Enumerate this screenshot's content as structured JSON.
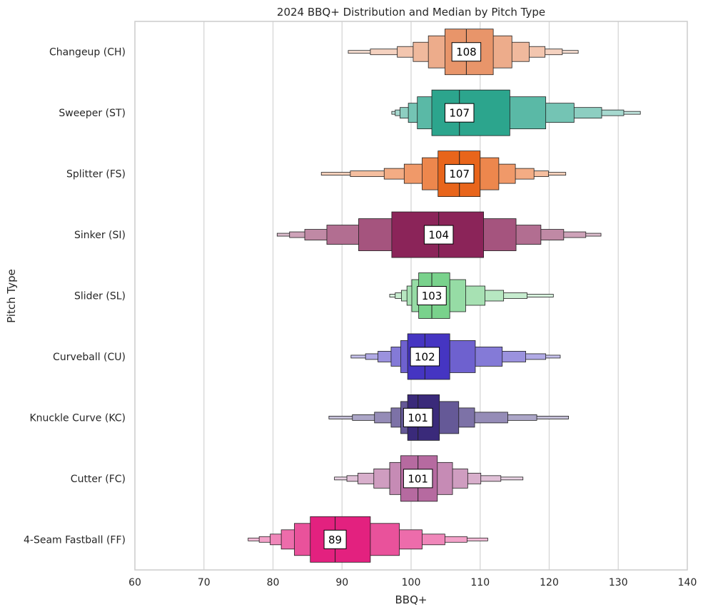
{
  "chart_data": {
    "type": "boxenplot",
    "title": "2024 BBQ+ Distribution and Median by Pitch Type",
    "xlabel": "BBQ+",
    "ylabel": "Pitch Type",
    "xlim": [
      60,
      140
    ],
    "xticks": [
      60,
      70,
      80,
      90,
      100,
      110,
      120,
      130,
      140
    ],
    "grid": "vertical",
    "categories": [
      "Changeup (CH)",
      "Sweeper (ST)",
      "Splitter (FS)",
      "Sinker (SI)",
      "Slider (SL)",
      "Curveball (CU)",
      "Knuckle Curve (KC)",
      "Cutter (FC)",
      "4-Seam Fastball (FF)"
    ],
    "series": [
      {
        "category": "Changeup (CH)",
        "color": "#e8956a",
        "median": 108,
        "median_label": "108",
        "boxes": [
          [
            104.9,
            111.9
          ],
          [
            102.5,
            114.6
          ],
          [
            100.3,
            117.1
          ],
          [
            98.0,
            119.4
          ],
          [
            94.1,
            121.9
          ],
          [
            90.9,
            124.2
          ]
        ]
      },
      {
        "category": "Sweeper (ST)",
        "color": "#2ca58d",
        "median": 107,
        "median_label": "107",
        "boxes": [
          [
            103.0,
            114.3
          ],
          [
            100.9,
            119.5
          ],
          [
            99.6,
            123.6
          ],
          [
            98.4,
            127.6
          ],
          [
            97.7,
            130.8
          ],
          [
            97.2,
            133.2
          ]
        ]
      },
      {
        "category": "Splitter (FS)",
        "color": "#e8651b",
        "median": 107,
        "median_label": "107",
        "boxes": [
          [
            103.9,
            110.0
          ],
          [
            101.6,
            112.7
          ],
          [
            99.0,
            115.1
          ],
          [
            96.1,
            117.8
          ],
          [
            91.2,
            119.9
          ],
          [
            87.0,
            122.4
          ]
        ]
      },
      {
        "category": "Sinker (SI)",
        "color": "#8b2459",
        "median": 104,
        "median_label": "104",
        "boxes": [
          [
            97.2,
            110.5
          ],
          [
            92.4,
            115.2
          ],
          [
            87.8,
            118.8
          ],
          [
            84.6,
            122.1
          ],
          [
            82.4,
            125.3
          ],
          [
            80.6,
            127.5
          ]
        ]
      },
      {
        "category": "Slider (SL)",
        "color": "#79d28c",
        "median": 103,
        "median_label": "103",
        "boxes": [
          [
            101.1,
            105.6
          ],
          [
            100.1,
            107.9
          ],
          [
            99.4,
            110.7
          ],
          [
            98.6,
            113.4
          ],
          [
            97.7,
            116.8
          ],
          [
            96.9,
            120.6
          ]
        ]
      },
      {
        "category": "Curveball (CU)",
        "color": "#4535c2",
        "median": 102,
        "median_label": "102",
        "boxes": [
          [
            99.5,
            105.6
          ],
          [
            98.5,
            109.3
          ],
          [
            97.1,
            113.2
          ],
          [
            95.2,
            116.6
          ],
          [
            93.4,
            119.5
          ],
          [
            91.3,
            121.6
          ]
        ]
      },
      {
        "category": "Knuckle Curve (KC)",
        "color": "#3a2a7a",
        "median": 101,
        "median_label": "101",
        "boxes": [
          [
            99.5,
            104.1
          ],
          [
            98.5,
            106.9
          ],
          [
            97.1,
            109.2
          ],
          [
            94.7,
            114.0
          ],
          [
            91.5,
            118.2
          ],
          [
            88.1,
            122.8
          ]
        ]
      },
      {
        "category": "Cutter (FC)",
        "color": "#b66aa0",
        "median": 101,
        "median_label": "101",
        "boxes": [
          [
            98.5,
            103.8
          ],
          [
            96.9,
            106.0
          ],
          [
            94.6,
            108.2
          ],
          [
            92.3,
            110.1
          ],
          [
            90.7,
            113.0
          ],
          [
            88.9,
            116.2
          ]
        ]
      },
      {
        "category": "4-Seam Fastball (FF)",
        "color": "#e3217f",
        "median": 89,
        "median_label": "89",
        "boxes": [
          [
            85.4,
            94.1
          ],
          [
            83.1,
            98.3
          ],
          [
            81.2,
            101.6
          ],
          [
            79.6,
            104.9
          ],
          [
            78.0,
            108.1
          ],
          [
            76.4,
            111.1
          ]
        ]
      }
    ]
  }
}
